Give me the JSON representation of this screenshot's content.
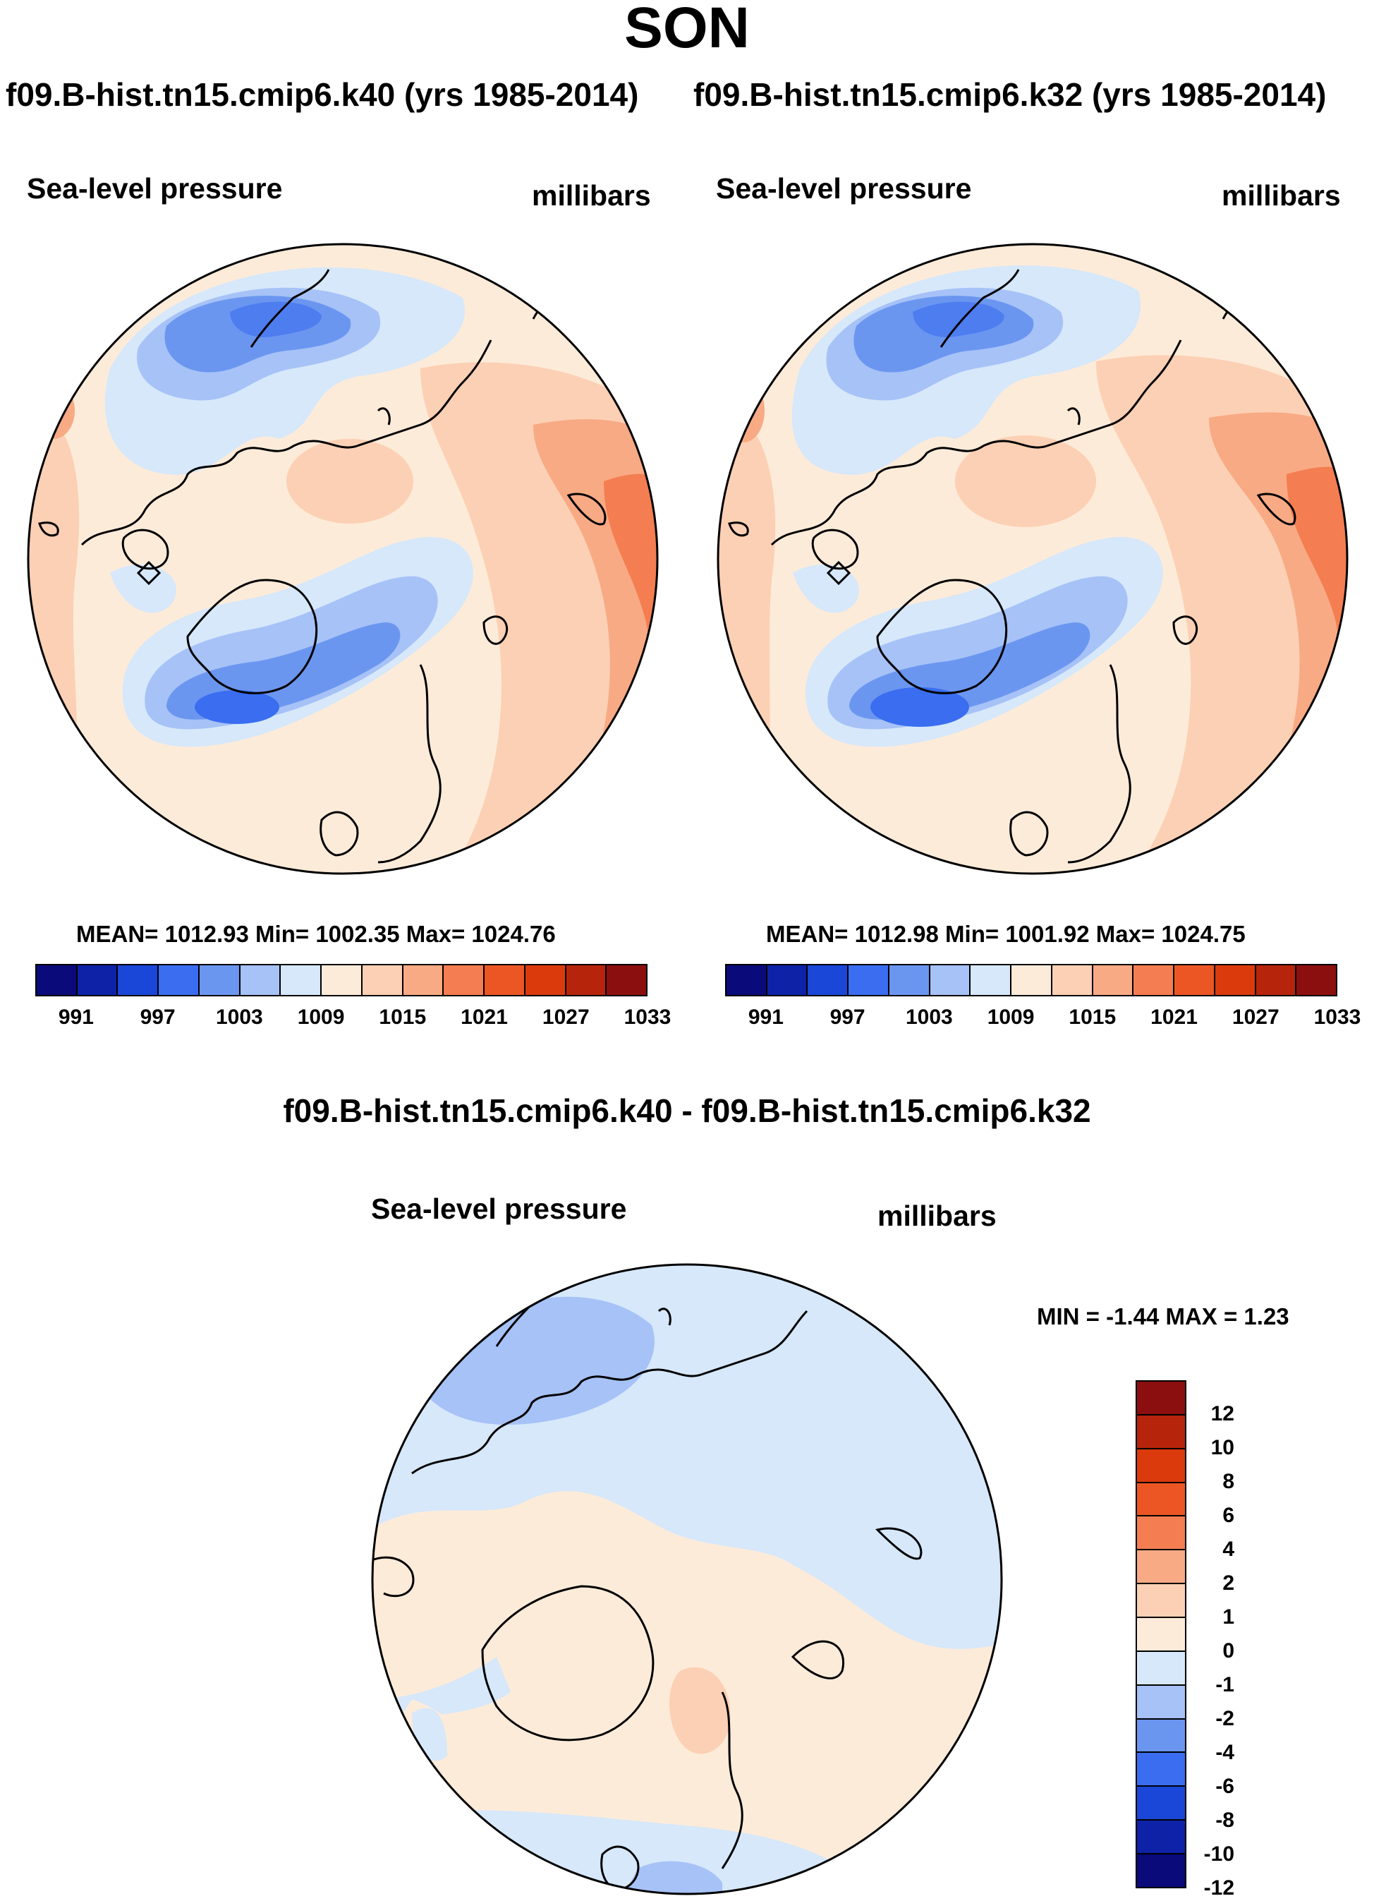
{
  "figure": {
    "season": "SON",
    "left_title": "f09.B-hist.tn15.cmip6.k40 (yrs 1985-2014)",
    "right_title": "f09.B-hist.tn15.cmip6.k32 (yrs 1985-2014)",
    "diff_title": "f09.B-hist.tn15.cmip6.k40 - f09.B-hist.tn15.cmip6.k32"
  },
  "panels": {
    "left": {
      "variable": "Sea-level pressure",
      "units": "millibars",
      "stats": "MEAN= 1012.93  Min= 1002.35  Max= 1024.76"
    },
    "right": {
      "variable": "Sea-level pressure",
      "units": "millibars",
      "stats": "MEAN= 1012.98  Min= 1001.92  Max= 1024.75"
    },
    "diff": {
      "variable": "Sea-level pressure",
      "units": "millibars",
      "stats": "MIN =  -1.44 MAX =   1.23"
    }
  },
  "colorbars": {
    "abs": {
      "tick_labels": [
        "991",
        "997",
        "1003",
        "1009",
        "1015",
        "1021",
        "1027",
        "1033"
      ],
      "colors": [
        "#0a0a7a",
        "#0d22a6",
        "#1a47d8",
        "#3a6df0",
        "#6b96f0",
        "#a6c2f7",
        "#d6e8fa",
        "#fdebd9",
        "#fcd0b4",
        "#f8aa84",
        "#f47e51",
        "#ec5625",
        "#db3a0d",
        "#b6240c",
        "#8c0f0f"
      ]
    },
    "diff": {
      "tick_labels": [
        "12",
        "10",
        "8",
        "6",
        "4",
        "2",
        "1",
        "0",
        "-1",
        "-2",
        "-4",
        "-6",
        "-8",
        "-10",
        "-12"
      ],
      "colors": [
        "#8c0f0f",
        "#b6240c",
        "#db3a0d",
        "#ec5625",
        "#f47e51",
        "#f8aa84",
        "#fcd0b4",
        "#fdebd9",
        "#d6e8fa",
        "#a6c2f7",
        "#6b96f0",
        "#3a6df0",
        "#1a47d8",
        "#0d22a6",
        "#0a0a7a"
      ]
    }
  }
}
